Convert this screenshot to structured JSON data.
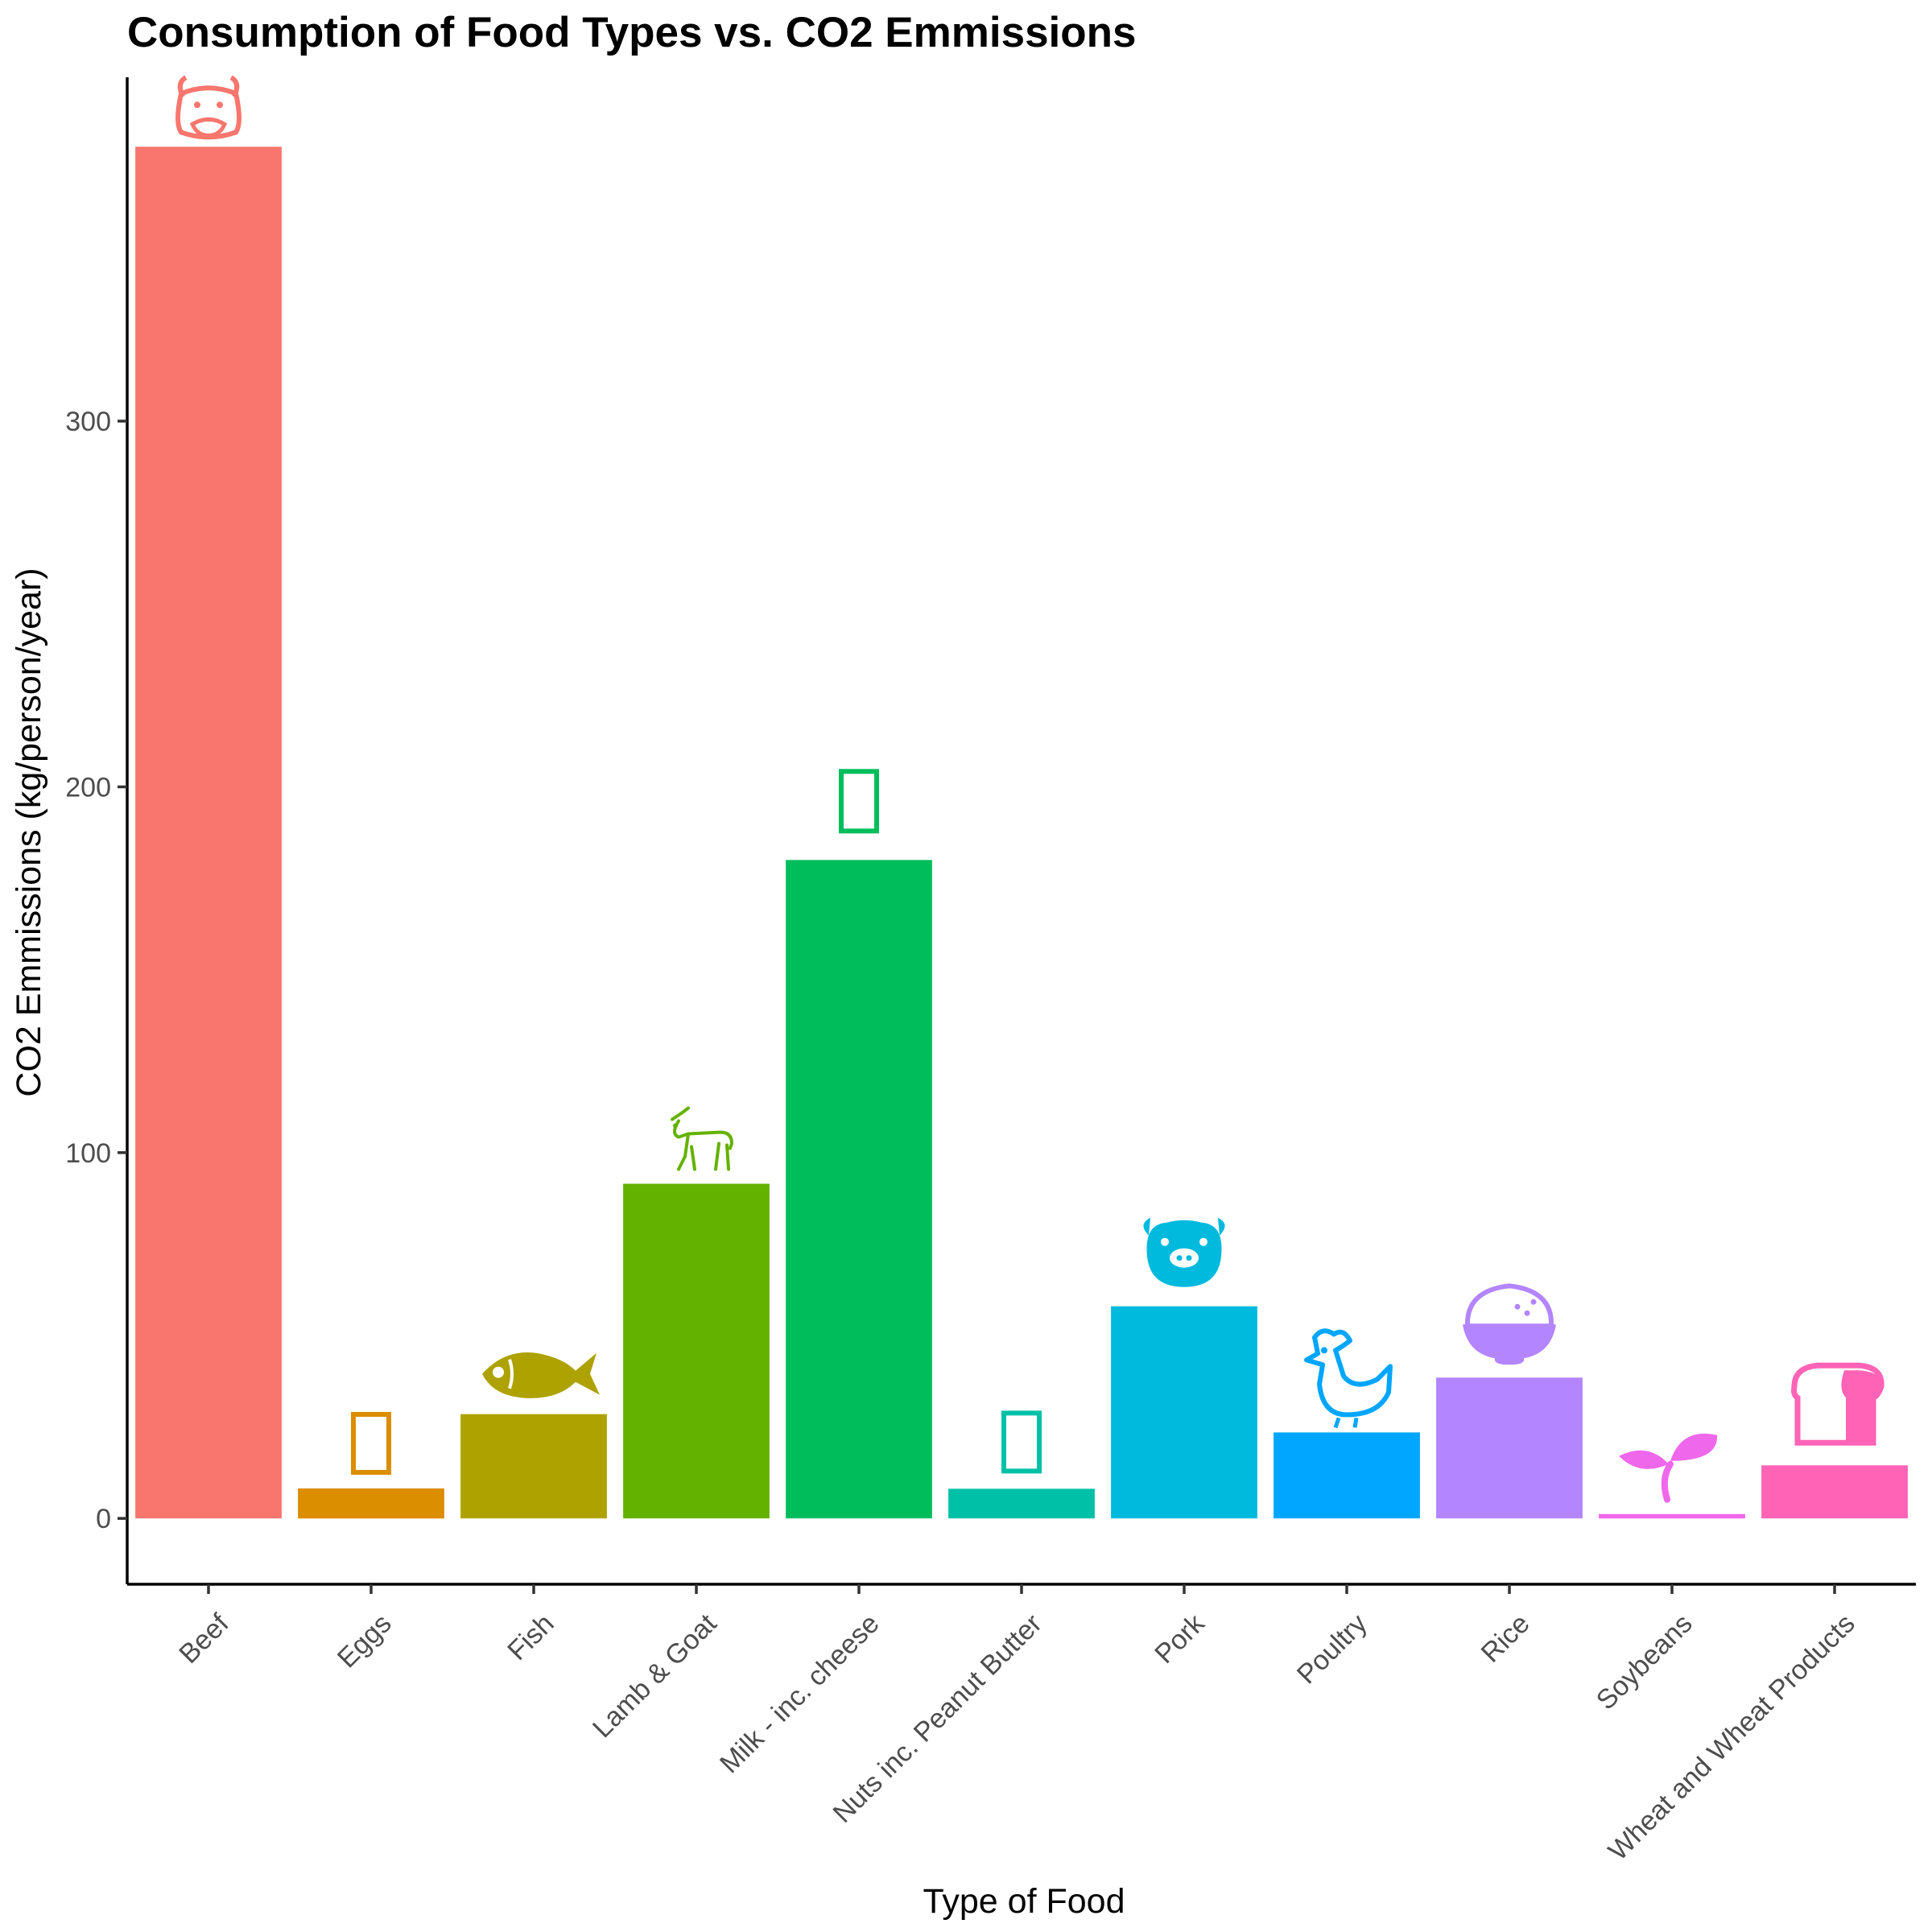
{
  "chart_data": {
    "type": "bar",
    "title": "Consumption of Food Types vs. CO2 Emmissions",
    "xlabel": "Type of Food",
    "ylabel": "CO2 Emmissions (kg/person/year)",
    "ylim": [
      -18,
      394
    ],
    "yticks": [
      0,
      100,
      200,
      300
    ],
    "grid": false,
    "legend": "none",
    "categories": [
      "Beef",
      "Eggs",
      "Fish",
      "Lamb & Goat",
      "Milk - inc. cheese",
      "Nuts inc. Peanut Butter",
      "Pork",
      "Poultry",
      "Rice",
      "Soybeans",
      "Wheat and Wheat Products"
    ],
    "values": [
      375,
      8.2,
      28.5,
      91.5,
      180,
      8.1,
      58,
      23.5,
      38.5,
      1.2,
      14.5
    ],
    "colors": [
      "#F8766D",
      "#DB8E00",
      "#AEA200",
      "#64B200",
      "#00BD5C",
      "#00C1A7",
      "#00BADE",
      "#00A6FF",
      "#B385FF",
      "#EF67EB",
      "#FF63B6"
    ],
    "icons": [
      "cow-icon",
      "egg-icon",
      "fish-icon",
      "goat-icon",
      "milk-icon",
      "nut-icon",
      "pig-icon",
      "chicken-icon",
      "rice-icon",
      "seedling-icon",
      "bread-icon"
    ]
  }
}
